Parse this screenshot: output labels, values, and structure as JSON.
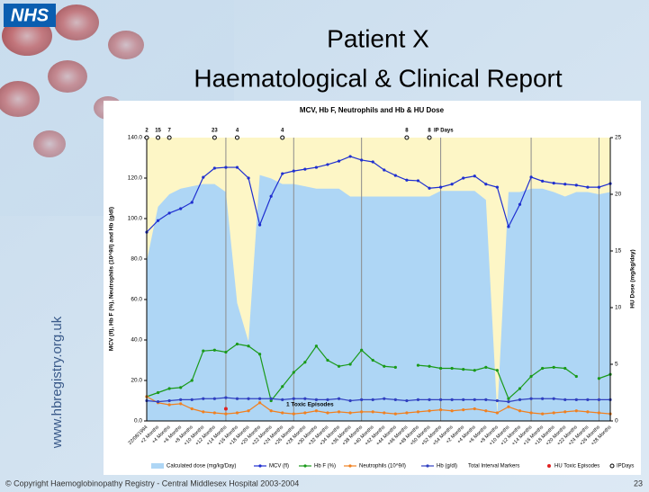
{
  "slide": {
    "logo": "NHS",
    "title_lines": [
      "Patient X",
      "Haematological & Clinical Report"
    ],
    "website": "www.hbregistry.org.uk",
    "footer": "© Copyright Haemoglobinopathy Registry - Central Middlesex Hospital 2003-2004",
    "page_number": 23
  },
  "chart_data": {
    "type": "line",
    "title": "MCV, Hb F, Neutrophils and Hb & HU Dose",
    "ylabel": "MCV (fl), Hb F (%), Neutrophils (10^9/l) and Hb (g/dl)",
    "y2label": "HU Dose (mg/kg/day)",
    "plot_background": "#fdf6c6",
    "categories": [
      "22/08/1994",
      "+2 Months",
      "+4 Months",
      "+6 Months",
      "+8 Months",
      "+10 Months",
      "+12 Months",
      "+14 Months",
      "+16 Months",
      "+18 Months",
      "+20 Months",
      "+22 Months",
      "+24 Months",
      "+26 Months",
      "+28 Months",
      "+30 Months",
      "+32 Months",
      "+34 Months",
      "+36 Months",
      "+38 Months",
      "+40 Months",
      "+42 Months",
      "+44 Months",
      "+46 Months",
      "+48 Months",
      "+50 Months",
      "+52 Months",
      "+54 Months",
      "+2 Months",
      "+4 Months",
      "+6 Months",
      "+8 Months",
      "+10 Months",
      "+12 Months",
      "+14 Months",
      "+16 Months",
      "+18 Months",
      "+20 Months",
      "+22 Months",
      "+24 Months",
      "+26 Months",
      "+28 Months"
    ],
    "ylim": [
      0,
      140
    ],
    "yticks": [
      {
        "value": 0,
        "label": "0.0"
      },
      {
        "value": 20,
        "label": "20.0"
      },
      {
        "value": 40,
        "label": "40.0"
      },
      {
        "value": 60,
        "label": "60.0"
      },
      {
        "value": 80,
        "label": "80.0"
      },
      {
        "value": 100,
        "label": "100.0"
      },
      {
        "value": 120,
        "label": "120.0"
      },
      {
        "value": 140,
        "label": "140.0"
      }
    ],
    "y2lim": [
      0,
      25
    ],
    "y2ticks": [
      0,
      5,
      10,
      15,
      20,
      25
    ],
    "series": [
      {
        "name": "Calculated dose (mg/kg/Day)",
        "type": "area",
        "axis": "y2",
        "color": "#aed6f5",
        "values": [
          14.1,
          18.9,
          20,
          20.5,
          20.7,
          20.9,
          20.9,
          20.2,
          10.4,
          7,
          21.7,
          21.4,
          20.9,
          20.9,
          20.7,
          20.5,
          20.5,
          20.5,
          19.8,
          19.8,
          19.8,
          19.8,
          19.8,
          19.8,
          19.8,
          19.8,
          20.3,
          20.3,
          20.3,
          20.3,
          19.5,
          0.6,
          20.2,
          20.2,
          20.5,
          20.5,
          20.2,
          19.8,
          20.2,
          20.2,
          20,
          20.2
        ]
      },
      {
        "name": "MCV (fl)",
        "color": "#1f2fd0",
        "values": [
          93.3,
          99,
          102.7,
          104.9,
          108,
          120.4,
          124.9,
          125.3,
          125.3,
          120,
          96.9,
          111,
          122.2,
          123.5,
          124.4,
          125.3,
          126.7,
          128.4,
          130.7,
          128.9,
          128,
          124,
          121.3,
          119,
          118.7,
          115,
          115.5,
          117,
          120,
          121,
          117,
          115.5,
          96,
          107,
          120.5,
          118.5,
          117.5,
          117,
          116.5,
          115.5,
          115.5,
          117.3
        ]
      },
      {
        "name": "Hb F (%)",
        "color": "#1a9a1a",
        "values": [
          12,
          14,
          16,
          16.5,
          20,
          34.6,
          35,
          34,
          38,
          37,
          33,
          10,
          17,
          24,
          29,
          37,
          30,
          27,
          28,
          35,
          30,
          27,
          26.5,
          null,
          27.5,
          27,
          26,
          26,
          25.5,
          25,
          26.5,
          25,
          11,
          16,
          22,
          26,
          26.5,
          26,
          22,
          null,
          21,
          23
        ]
      },
      {
        "name": "Neutrophils (10^9/l)",
        "color": "#f08020",
        "values": [
          12,
          9,
          8,
          8.5,
          6,
          4.5,
          4,
          3.5,
          4,
          5,
          9,
          5,
          4,
          3.5,
          4,
          5,
          4,
          4.5,
          4,
          4.5,
          4.5,
          4,
          3.5,
          4,
          4.5,
          5,
          5.5,
          5,
          5.5,
          6,
          5,
          4,
          7,
          5,
          4,
          3.5,
          4,
          4.5,
          5,
          4.5,
          4,
          3.5
        ]
      },
      {
        "name": "Hb (g/dl)",
        "color": "#3040c0",
        "values": [
          10,
          9.5,
          10,
          10.5,
          10.5,
          11,
          11,
          11.5,
          11,
          11,
          11,
          11,
          10.5,
          11,
          11,
          10.5,
          10.5,
          11,
          10,
          10.5,
          10.5,
          11,
          10.5,
          10,
          10.5,
          10.5,
          10.5,
          10.5,
          10.5,
          10.5,
          10.5,
          10,
          9.5,
          10.5,
          11,
          11,
          11,
          10.5,
          10.5,
          10.5,
          10.5,
          10.5
        ]
      }
    ],
    "interval_markers": {
      "name": "Total Interval Markers",
      "color": "#8c8c8c",
      "x": [
        7,
        13,
        19,
        26,
        34,
        40
      ]
    },
    "hu_toxic_episodes": {
      "name": "HU Toxic Episodes",
      "color": "#e02020",
      "x": [
        7
      ],
      "values": [
        6
      ]
    },
    "ip_days": {
      "name": "IPDays",
      "label": "IP Days",
      "x": [
        0,
        1,
        2,
        6,
        8,
        12,
        23,
        25
      ],
      "values": [
        2,
        15,
        7,
        23,
        4,
        4,
        8,
        8
      ]
    },
    "annotations": [
      "1 Toxic Episodes"
    ]
  }
}
